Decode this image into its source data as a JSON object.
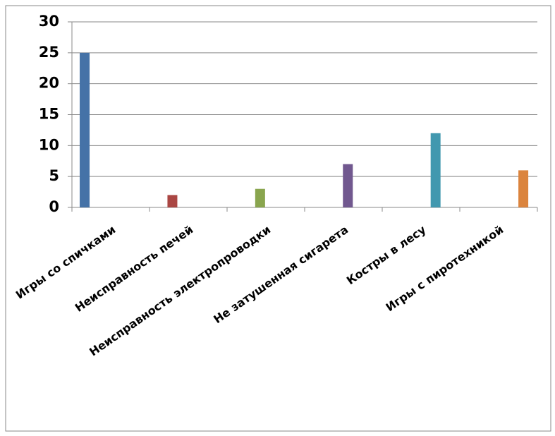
{
  "chart_data": {
    "type": "bar",
    "categories": [
      "Игры со спичками",
      "Неисправность печей",
      "Неисправность электропроводки",
      "Не затушенная сигарета",
      "Костры в лесу",
      "Игры с пиротехникой"
    ],
    "values": [
      25,
      2,
      3,
      7,
      12,
      6
    ],
    "colors": [
      "#4572a7",
      "#aa4643",
      "#89a54e",
      "#71588f",
      "#4198af",
      "#db843d"
    ],
    "ylim": [
      0,
      30
    ],
    "yticks": [
      0,
      5,
      10,
      15,
      20,
      25,
      30
    ],
    "grid": true
  }
}
